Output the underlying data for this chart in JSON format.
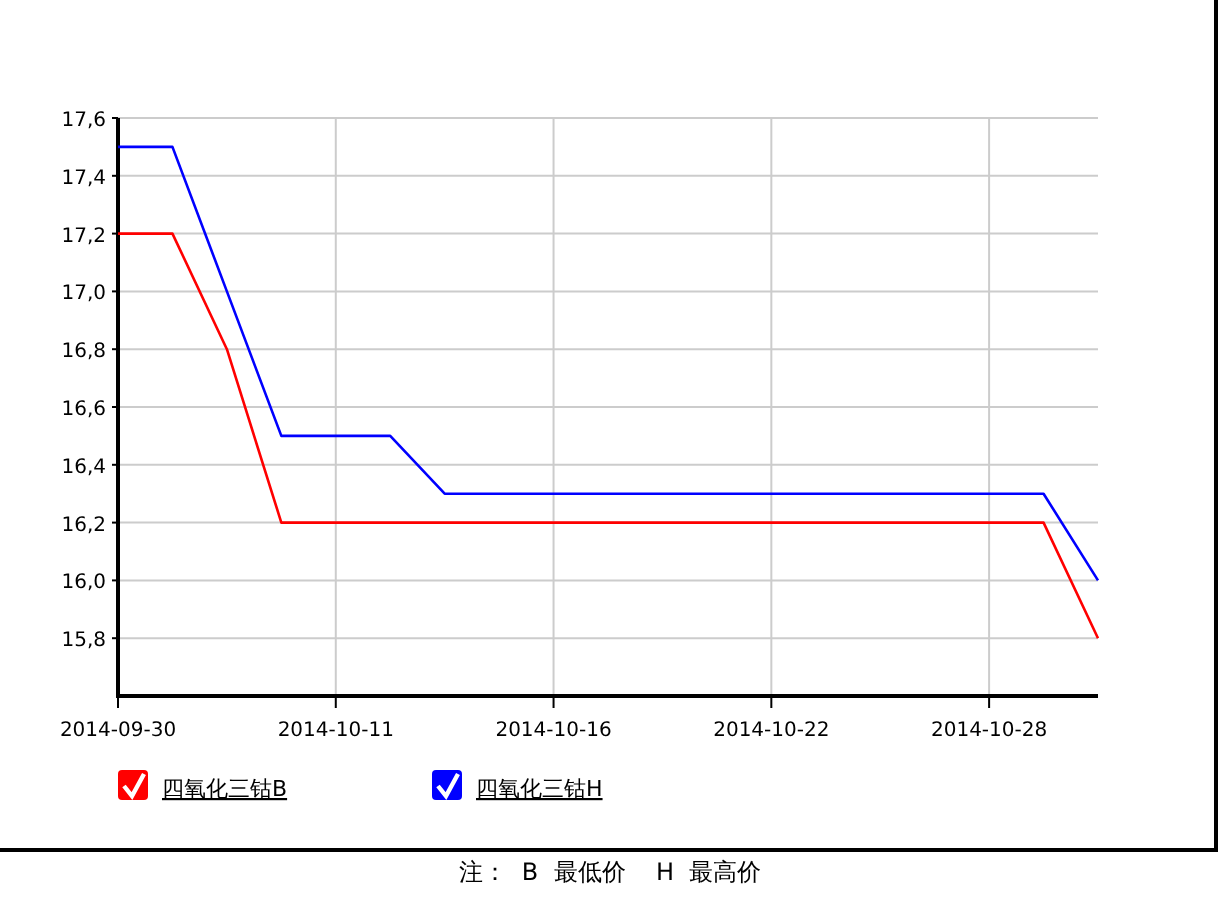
{
  "chart_data": {
    "type": "line",
    "categories": [
      "2014-09-30",
      null,
      null,
      null,
      "2014-10-11",
      null,
      null,
      null,
      "2014-10-16",
      null,
      null,
      null,
      "2014-10-22",
      null,
      null,
      null,
      "2014-10-28",
      null,
      null
    ],
    "series": [
      {
        "name": "四氧化三钴B",
        "color": "#ff0000",
        "values": [
          17.2,
          17.2,
          16.8,
          16.2,
          16.2,
          16.2,
          16.2,
          16.2,
          16.2,
          16.2,
          16.2,
          16.2,
          16.2,
          16.2,
          16.2,
          16.2,
          16.2,
          16.2,
          15.8
        ]
      },
      {
        "name": "四氧化三钴H",
        "color": "#0000ff",
        "values": [
          17.5,
          17.5,
          17.0,
          16.5,
          16.5,
          16.5,
          16.3,
          16.3,
          16.3,
          16.3,
          16.3,
          16.3,
          16.3,
          16.3,
          16.3,
          16.3,
          16.3,
          16.3,
          16.0
        ]
      }
    ],
    "ylim": [
      15.6,
      17.6
    ],
    "yticks": [
      {
        "value": 15.8,
        "label": "15,8"
      },
      {
        "value": 16.0,
        "label": "16,0"
      },
      {
        "value": 16.2,
        "label": "16,2"
      },
      {
        "value": 16.4,
        "label": "16,4"
      },
      {
        "value": 16.6,
        "label": "16,6"
      },
      {
        "value": 16.8,
        "label": "16,8"
      },
      {
        "value": 17.0,
        "label": "17,0"
      },
      {
        "value": 17.2,
        "label": "17,2"
      },
      {
        "value": 17.4,
        "label": "17,4"
      },
      {
        "value": 17.6,
        "label": "17,6"
      }
    ],
    "grid": true,
    "legend": "bottom",
    "annotations": [
      "注：  B  最低价    H  最高价"
    ]
  }
}
